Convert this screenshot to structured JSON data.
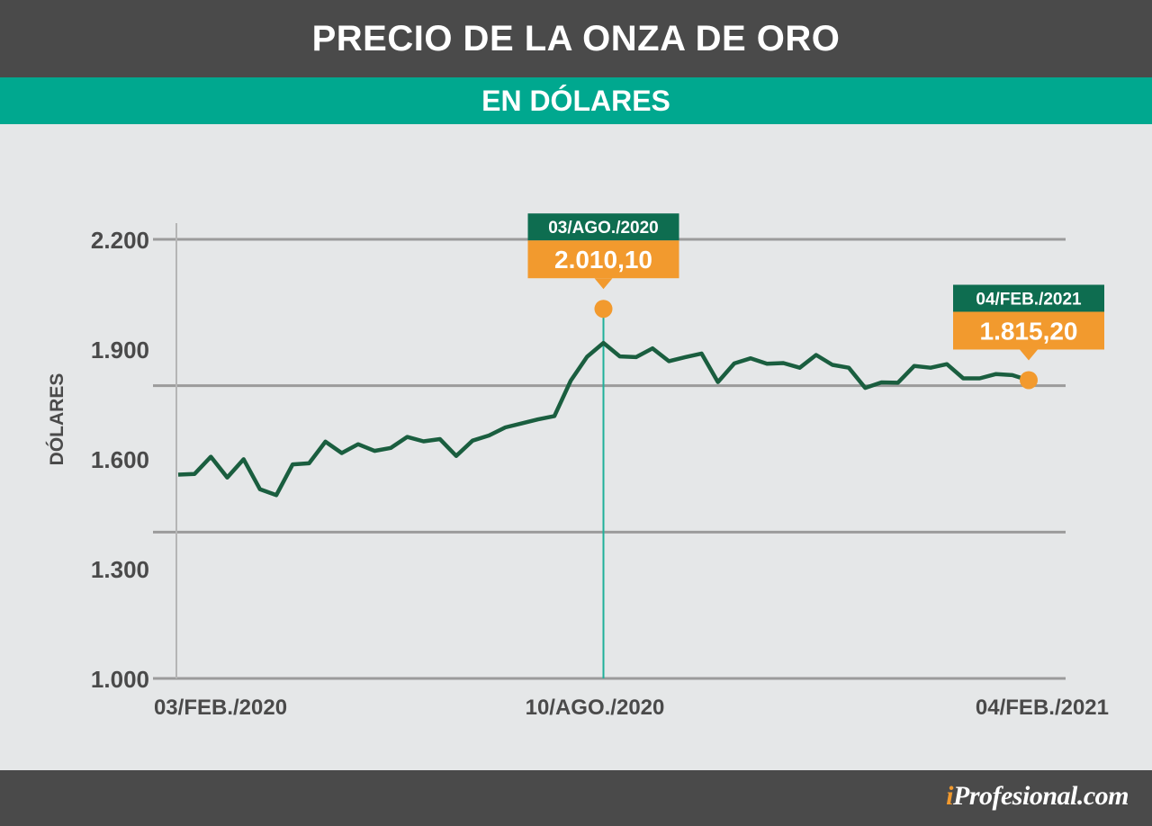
{
  "header": {
    "title": "PRECIO DE LA ONZA DE ORO",
    "subtitle": "EN DÓLARES"
  },
  "footer": {
    "brand_prefix": "i",
    "brand_rest": "Profesional.com"
  },
  "colors": {
    "line": "#1a5e3f",
    "marker": "#f29a2e",
    "callout_date_bg": "#0e6d50",
    "callout_value_bg": "#f29a2e",
    "vertical_marker": "#1fb09a",
    "grid": "#9b9b9b",
    "axis_text": "#4a4a4a"
  },
  "chart_data": {
    "type": "line",
    "ylabel": "DÓLARES",
    "ylim": [
      1000,
      2200
    ],
    "yticks": [
      1000,
      1300,
      1600,
      1900,
      2200
    ],
    "ytick_labels": [
      "1.000",
      "1.300",
      "1.600",
      "1.900",
      "2.200"
    ],
    "gridlines": [
      1000,
      1400,
      1800,
      2200
    ],
    "xtick_labels": [
      "03/FEB./2020",
      "10/AGO./2020",
      "04/FEB./2021"
    ],
    "series": [
      {
        "values": [
          1557,
          1559,
          1606,
          1549,
          1599,
          1517,
          1501,
          1585,
          1588,
          1647,
          1616,
          1640,
          1622,
          1630,
          1660,
          1648,
          1654,
          1608,
          1650,
          1664,
          1686,
          1697,
          1708,
          1717,
          1814,
          1879,
          1917,
          1880,
          1878,
          1902,
          1867,
          1878,
          1888,
          1810,
          1861,
          1875,
          1860,
          1862,
          1849,
          1884,
          1857,
          1849,
          1794,
          1809,
          1808,
          1854,
          1849,
          1859,
          1820,
          1820,
          1832,
          1829,
          1815
        ]
      }
    ],
    "annotations": [
      {
        "date": "03/AGO./2020",
        "value": 2010.1,
        "value_label": "2.010,10",
        "index": 26,
        "vertical_line": true
      },
      {
        "date": "04/FEB./2021",
        "value": 1815.2,
        "value_label": "1.815,20",
        "index": 52,
        "vertical_line": false
      }
    ]
  }
}
